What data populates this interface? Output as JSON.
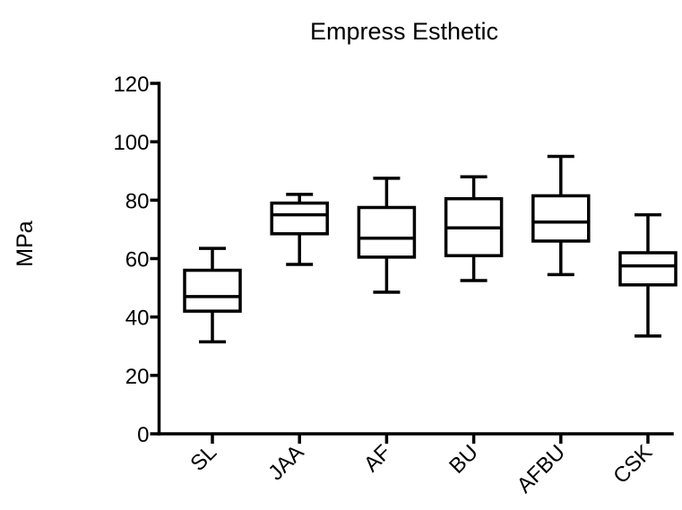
{
  "chart_data": {
    "type": "box",
    "title": "Empress Esthetic",
    "ylabel": "MPa",
    "xlabel": "",
    "ylim": [
      0,
      120
    ],
    "yticks": [
      0,
      20,
      40,
      60,
      80,
      100,
      120
    ],
    "grid": false,
    "categories": [
      "SL",
      "JAA",
      "AF",
      "BU",
      "AFBU",
      "CSK"
    ],
    "boxes": [
      {
        "category": "SL",
        "min": 31.5,
        "q1": 42,
        "median": 47,
        "q3": 56,
        "max": 63.5
      },
      {
        "category": "JAA",
        "min": 58,
        "q1": 68.5,
        "median": 75,
        "q3": 79,
        "max": 82
      },
      {
        "category": "AF",
        "min": 48.5,
        "q1": 60.5,
        "median": 67,
        "q3": 77.5,
        "max": 87.5
      },
      {
        "category": "BU",
        "min": 52.5,
        "q1": 61,
        "median": 70.5,
        "q3": 80.5,
        "max": 88
      },
      {
        "category": "AFBU",
        "min": 54.5,
        "q1": 66,
        "median": 72.5,
        "q3": 81.5,
        "max": 95
      },
      {
        "category": "CSK",
        "min": 33.5,
        "q1": 51,
        "median": 57.5,
        "q3": 62,
        "max": 75
      }
    ]
  }
}
